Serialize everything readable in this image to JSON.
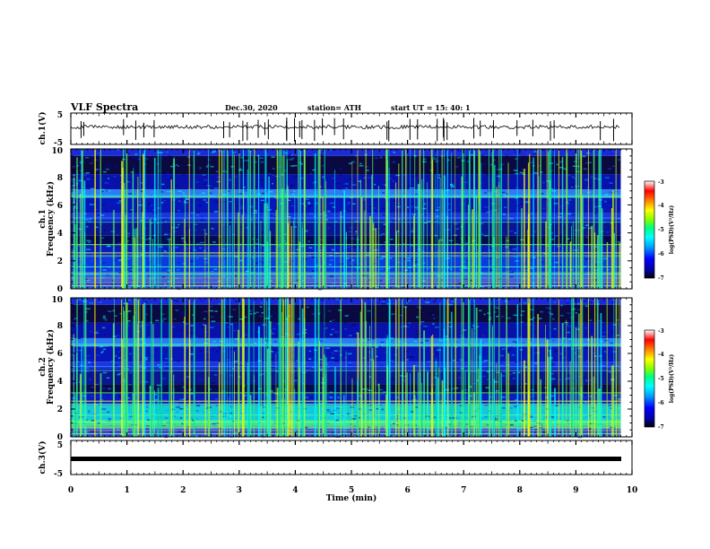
{
  "header": {
    "title": "VLF Spectra",
    "date": "Dec.30, 2020",
    "station": "station= ATH",
    "start": "start  UT =   15: 40: 1"
  },
  "panels": {
    "ch1_waveform": {
      "ylabel": "ch.1(V)",
      "yticks": [
        "5",
        "-5"
      ]
    },
    "ch1_spectrogram": {
      "ylabel_ch": "ch.1",
      "ylabel": "Frequency  (kHz)",
      "yticks": [
        "0",
        "2",
        "4",
        "6",
        "8",
        "10"
      ]
    },
    "ch2_spectrogram": {
      "ylabel_ch": "ch.2",
      "ylabel": "Frequency  (kHz)",
      "yticks": [
        "0",
        "2",
        "4",
        "6",
        "8",
        "10"
      ]
    },
    "ch3_waveform": {
      "ylabel": "ch.3(V)",
      "yticks": [
        "5",
        "-5"
      ]
    }
  },
  "colorbar": {
    "label": "log(PSD)(V²/Hz)",
    "ticks": [
      "-3",
      "-4",
      "-5",
      "-6",
      "-7"
    ],
    "colors": [
      "#000000",
      "#0000a0",
      "#0000ff",
      "#00a0ff",
      "#00ffff",
      "#00ff80",
      "#80ff00",
      "#ffff00",
      "#ff8000",
      "#ff0000",
      "#ffffff"
    ]
  },
  "xaxis": {
    "label": "Time  (min)",
    "ticks": [
      "0",
      "1",
      "2",
      "3",
      "4",
      "5",
      "6",
      "7",
      "8",
      "9",
      "10"
    ]
  },
  "chart_data": {
    "type": "heatmap",
    "title": "VLF Spectra",
    "xlabel": "Time  (min)",
    "xlim": [
      0,
      10
    ],
    "data_end_min": 9.8,
    "series": [
      {
        "name": "ch.1",
        "kind": "waveform",
        "ylim": [
          -5,
          5
        ],
        "level": 0
      },
      {
        "name": "ch.1",
        "kind": "spectrogram",
        "ylim": [
          0,
          10
        ],
        "clim": [
          -7,
          -3
        ]
      },
      {
        "name": "ch.2",
        "kind": "spectrogram",
        "ylim": [
          0,
          10
        ],
        "clim": [
          -7,
          -3
        ]
      },
      {
        "name": "ch.3",
        "kind": "waveform",
        "ylim": [
          -5,
          5
        ],
        "level": 0
      }
    ]
  }
}
